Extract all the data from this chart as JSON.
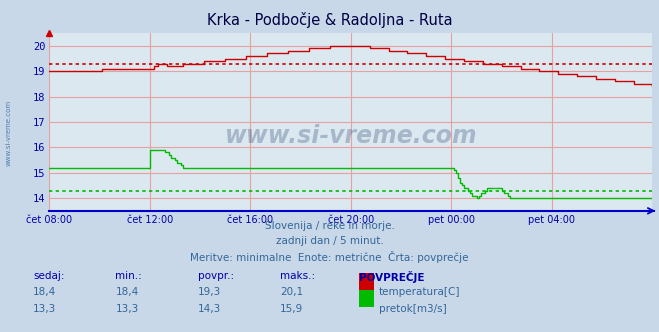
{
  "title": "Krka - Podbočje & Radoljna - Ruta",
  "bg_color": "#c8d8e8",
  "plot_bg_color": "#dce8f0",
  "grid_color_h": "#e8a0a0",
  "grid_color_v": "#e8a0a0",
  "x_labels": [
    "čet 08:00",
    "čet 12:00",
    "čet 16:00",
    "čet 20:00",
    "pet 00:00",
    "pet 04:00"
  ],
  "x_ticks_idx": [
    0,
    48,
    96,
    144,
    192,
    240
  ],
  "total_points": 289,
  "ylim": [
    13.5,
    20.5
  ],
  "yticks": [
    14,
    15,
    16,
    17,
    18,
    19,
    20
  ],
  "temp_avg": 19.3,
  "flow_avg": 14.3,
  "temp_color": "#cc0000",
  "flow_color": "#00bb00",
  "subtitle1": "Slovenija / reke in morje.",
  "subtitle2": "zadnji dan / 5 minut.",
  "subtitle3": "Meritve: minimalne  Enote: metrične  Črta: povprečje",
  "table_headers": [
    "sedaj:",
    "min.:",
    "povpr.:",
    "maks.:",
    "POVPREČJE"
  ],
  "row1": [
    "18,4",
    "18,4",
    "19,3",
    "20,1"
  ],
  "row1_label": "temperatura[C]",
  "row2": [
    "13,3",
    "13,3",
    "14,3",
    "15,9"
  ],
  "row2_label": "pretok[m3/s]",
  "watermark": "www.si-vreme.com",
  "watermark_color": "#1a3a6a",
  "axis_color": "#0000cc",
  "tick_color": "#0000aa",
  "title_color": "#000044",
  "subtitle_color": "#336699",
  "header_color": "#0000aa",
  "val_color": "#336699",
  "sidewater_color": "#336699"
}
